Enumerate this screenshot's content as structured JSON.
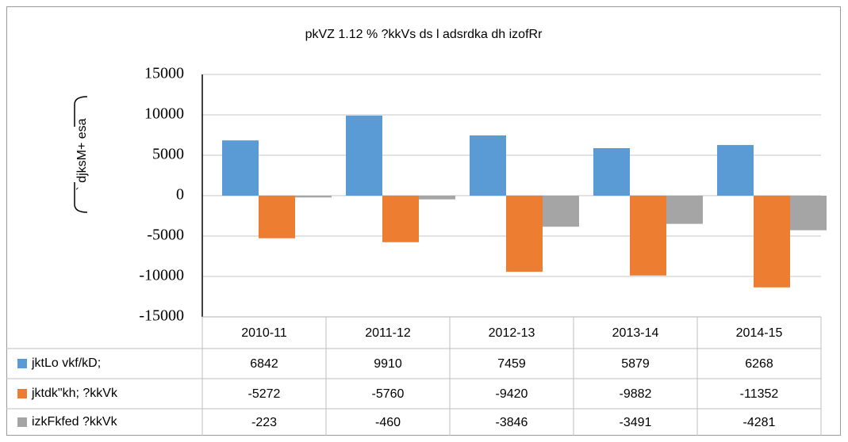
{
  "chart_data": {
    "type": "bar",
    "title": "pkVZ 1.12 % ?kkVs ds l adsrdka dh izofRr",
    "y_label": "` djksM+ esa",
    "categories": [
      "2010-11",
      "2011-12",
      "2012-13",
      "2013-14",
      "2014-15"
    ],
    "series": [
      {
        "name": "jktLo vkf/kD;",
        "color": "#5b9bd5",
        "values": [
          6842,
          9910,
          7459,
          5879,
          6268
        ]
      },
      {
        "name": "jktdk\"kh; ?kkVk",
        "color": "#ed7d31",
        "values": [
          -5272,
          -5760,
          -9420,
          -9882,
          -11352
        ]
      },
      {
        "name": "izkFkfed ?kkVk",
        "color": "#a5a5a5",
        "values": [
          -223,
          -460,
          -3846,
          -3491,
          -4281
        ]
      }
    ],
    "ylim": [
      -15000,
      15000
    ],
    "yticks": [
      -15000,
      -10000,
      -5000,
      0,
      5000,
      10000,
      15000
    ],
    "grid": true
  }
}
